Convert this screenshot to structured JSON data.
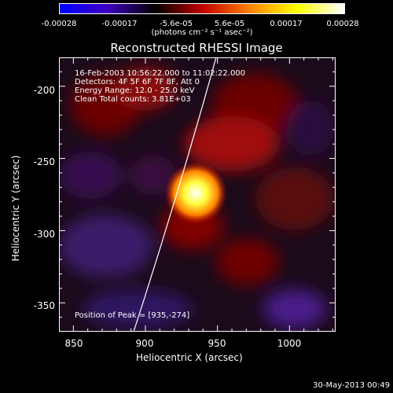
{
  "colorbar": {
    "ticks": [
      "-0.00028",
      "-0.00017",
      "-5.6e-05",
      "5.6e-05",
      "0.00017",
      "0.00028"
    ],
    "unit": "(photons cm⁻² s⁻¹ asec⁻²)",
    "colors": [
      "#0000ff",
      "#4000c0",
      "#000000",
      "#c00000",
      "#ff8000",
      "#ffff00",
      "#ffffff"
    ]
  },
  "chart_data": {
    "type": "heatmap",
    "title": "Reconstructed RHESSI Image",
    "xlabel": "Heliocentric X (arcsec)",
    "ylabel": "Heliocentric Y (arcsec)",
    "xlim": [
      840,
      1032
    ],
    "ylim": [
      -370,
      -180
    ],
    "xticks": [
      "850",
      "900",
      "950",
      "1000"
    ],
    "yticks": [
      "-200",
      "-250",
      "-300",
      "-350"
    ],
    "peak": [
      935,
      -274
    ],
    "annotations": [
      "16-Feb-2003 10:56:22.000 to 11:02:22.000",
      "Detectors: 4F 5F 6F 7F 8F, Att 0",
      "Energy Range: 12.0 - 25.0 keV",
      "Clean    Total counts: 3.81E+03"
    ],
    "peak_label": "Position of Peak = [935,-274]"
  },
  "footer_date": "30-May-2013 00:49"
}
